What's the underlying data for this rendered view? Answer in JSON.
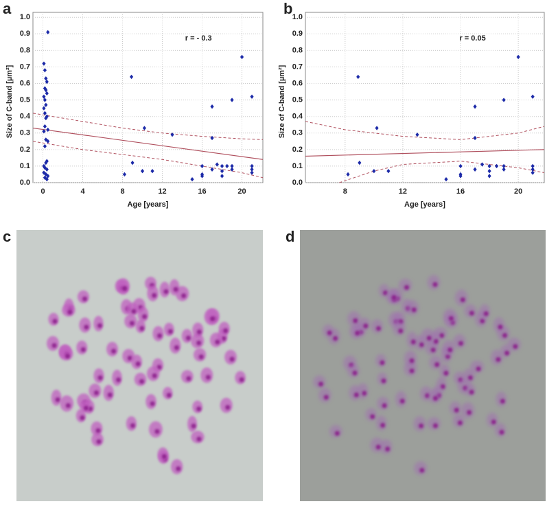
{
  "chart_data": [
    {
      "type": "scatter",
      "label": "a",
      "xlabel": "Age [years]",
      "ylabel": "Size of C-band [µm²]",
      "annotation": "r = - 0.3",
      "color": "#1c2aa8",
      "fit_color": "#b0505e",
      "grid": true,
      "xlim": [
        -1,
        22.1
      ],
      "ylim": [
        0,
        1.03
      ],
      "xticks": [
        0,
        4,
        8,
        12,
        16,
        20
      ],
      "yticks": [
        {
          "value": 0,
          "label": "0.0"
        },
        0.1,
        0.2,
        0.3,
        0.4,
        0.5,
        0.6,
        0.7,
        0.8,
        0.9,
        {
          "value": 1,
          "label": "1.0"
        }
      ],
      "points": {
        "x": [
          0.5,
          0.1,
          0.2,
          0.3,
          0.4,
          0.2,
          0.3,
          0.4,
          0.1,
          0.2,
          0.3,
          0.1,
          0.2,
          0.4,
          0.3,
          0.2,
          0.5,
          0.1,
          0.3,
          0.5,
          0.2,
          0.4,
          0.3,
          0.1,
          0.2,
          0.4,
          0.1,
          0.3,
          0.5,
          0.2,
          0.4,
          8.2,
          8.9,
          9.0,
          10.0,
          10.2,
          11.0,
          13.0,
          15.0,
          16.0,
          16.0,
          16.0,
          17.0,
          17.0,
          17.0,
          17.5,
          18.0,
          18.0,
          18.0,
          18.5,
          19.0,
          19.0,
          19.0,
          20.0,
          21.0,
          21.0,
          21.0,
          21.0
        ],
        "values": [
          0.91,
          0.72,
          0.68,
          0.63,
          0.61,
          0.57,
          0.56,
          0.54,
          0.52,
          0.5,
          0.47,
          0.45,
          0.42,
          0.4,
          0.39,
          0.34,
          0.32,
          0.31,
          0.26,
          0.25,
          0.22,
          0.13,
          0.12,
          0.1,
          0.09,
          0.08,
          0.06,
          0.05,
          0.04,
          0.03,
          0.02,
          0.05,
          0.64,
          0.12,
          0.07,
          0.33,
          0.07,
          0.29,
          0.02,
          0.1,
          0.05,
          0.04,
          0.46,
          0.27,
          0.08,
          0.11,
          0.1,
          0.07,
          0.04,
          0.1,
          0.5,
          0.1,
          0.08,
          0.76,
          0.52,
          0.1,
          0.08,
          0.06
        ]
      },
      "fit": {
        "x": [
          -1,
          22.1
        ],
        "values": [
          0.33,
          0.14
        ]
      },
      "ci_upper": {
        "x": [
          -1,
          4,
          8,
          12,
          16,
          20,
          22.1
        ],
        "values": [
          0.42,
          0.37,
          0.33,
          0.3,
          0.28,
          0.265,
          0.26
        ]
      },
      "ci_lower": {
        "x": [
          -1,
          4,
          8,
          12,
          16,
          20,
          22.1
        ],
        "values": [
          0.25,
          0.2,
          0.17,
          0.14,
          0.1,
          0.06,
          0.03
        ]
      }
    },
    {
      "type": "scatter",
      "label": "b",
      "xlabel": "Age [years]",
      "ylabel": "Size of C-band [µm²]",
      "annotation": "r = 0.05",
      "color": "#1c2aa8",
      "fit_color": "#b0505e",
      "grid": true,
      "xlim": [
        5.25,
        21.8
      ],
      "ylim": [
        0,
        1.03
      ],
      "xticks": [
        8,
        12,
        16,
        20
      ],
      "yticks": [
        {
          "value": 0,
          "label": "0.0"
        },
        0.1,
        0.2,
        0.3,
        0.4,
        0.5,
        0.6,
        0.7,
        0.8,
        0.9,
        {
          "value": 1,
          "label": "1.0"
        }
      ],
      "points": {
        "x": [
          8.2,
          8.9,
          9.0,
          10.0,
          10.2,
          11.0,
          13.0,
          15.0,
          16.0,
          16.0,
          16.0,
          17.0,
          17.0,
          17.0,
          17.5,
          18.0,
          18.0,
          18.0,
          18.5,
          19.0,
          19.0,
          19.0,
          20.0,
          21.0,
          21.0,
          21.0,
          21.0
        ],
        "values": [
          0.05,
          0.64,
          0.12,
          0.07,
          0.33,
          0.07,
          0.29,
          0.02,
          0.1,
          0.05,
          0.04,
          0.46,
          0.27,
          0.08,
          0.11,
          0.1,
          0.07,
          0.04,
          0.1,
          0.5,
          0.1,
          0.08,
          0.76,
          0.52,
          0.1,
          0.08,
          0.06
        ]
      },
      "fit": {
        "x": [
          5.25,
          21.8
        ],
        "values": [
          0.16,
          0.2
        ]
      },
      "ci_upper": {
        "x": [
          5.25,
          8,
          12,
          16,
          20,
          21.8
        ],
        "values": [
          0.37,
          0.32,
          0.28,
          0.26,
          0.3,
          0.34
        ]
      },
      "ci_lower": {
        "x": [
          7.6,
          10,
          12,
          16,
          20,
          21.8
        ],
        "values": [
          0,
          0.07,
          0.11,
          0.13,
          0.09,
          0.06
        ]
      }
    }
  ],
  "images": [
    {
      "label": "c"
    },
    {
      "label": "d"
    }
  ]
}
